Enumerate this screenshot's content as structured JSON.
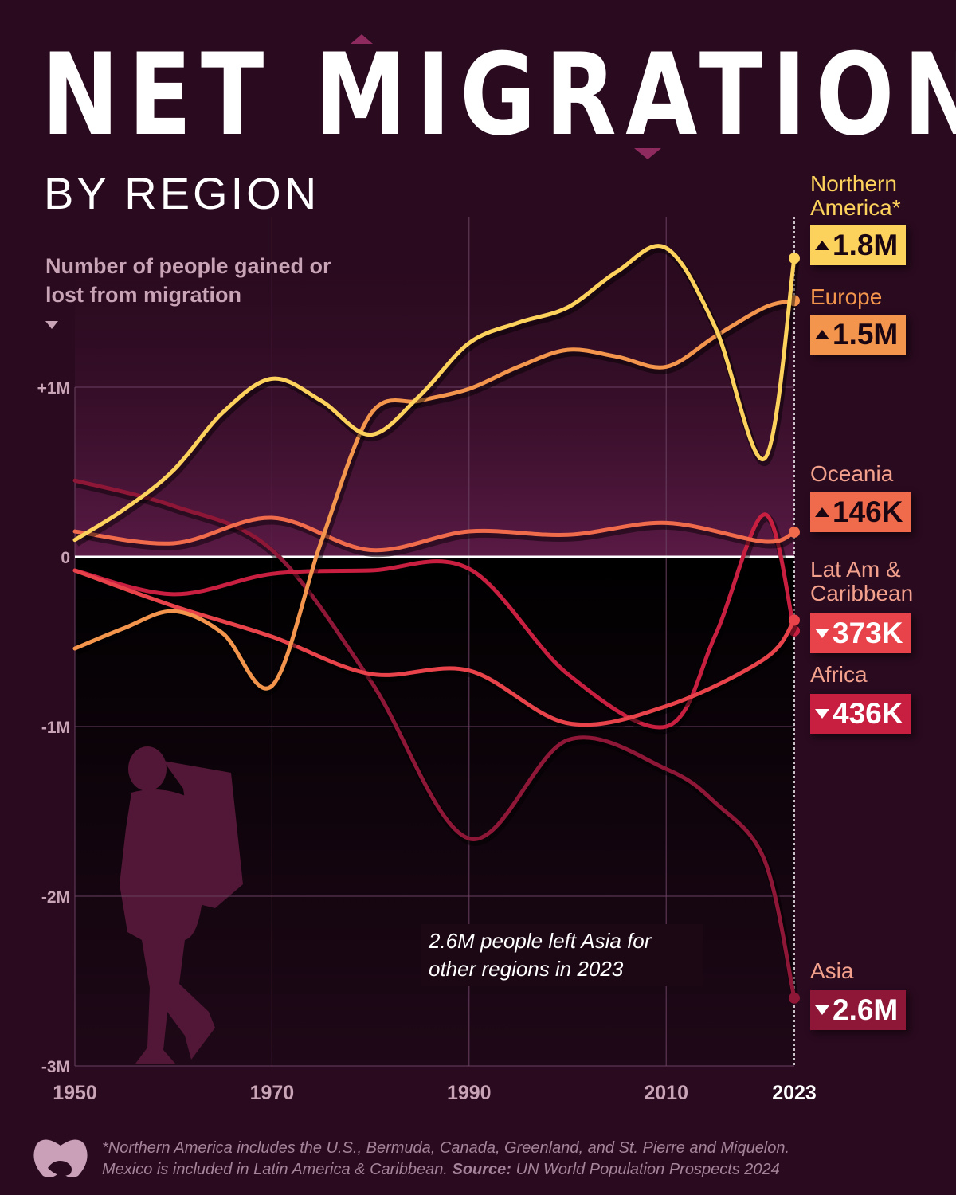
{
  "header": {
    "title": "NET MIGRATION",
    "subtitle": "BY REGION",
    "y_description": "Number of people gained or lost from migration"
  },
  "annotation": "2.6M people left Asia for other regions in 2023",
  "footnote": {
    "line1": "*Northern America includes the U.S., Bermuda, Canada, Greenland, and St. Pierre and Miquelon.",
    "line2_prefix": "Mexico is included in Latin America & Caribbean.",
    "source_label": "Source:",
    "source": "UN World Population Prospects 2024"
  },
  "icons": {
    "hiker": "hiker-silhouette-icon",
    "logo": "visual-capitalist-logo-icon",
    "up": "triangle-up-icon",
    "down": "triangle-down-icon"
  },
  "chart_data": {
    "type": "line",
    "title": "NET MIGRATION",
    "subtitle": "BY REGION",
    "ylabel": "Number of people gained or lost from migration",
    "xlim": [
      1950,
      2023
    ],
    "ylim": [
      -3,
      2
    ],
    "x_ticks": [
      "1950",
      "1970",
      "1990",
      "2010",
      "2023"
    ],
    "x_tick_values": [
      1950,
      1970,
      1990,
      2010,
      2023
    ],
    "y_ticks": [
      "+1M",
      "0",
      "-1M",
      "-2M",
      "-3M"
    ],
    "y_tick_values": [
      1,
      0,
      -1,
      -2,
      -3
    ],
    "unit": "millions of people",
    "grid": true,
    "series": [
      {
        "name": "Northern America*",
        "label_line1": "Northern",
        "label_line2": "America*",
        "end_label": "1.8M",
        "direction": "up",
        "color": "#fdd25c",
        "text_color": "#fdd25c",
        "x": [
          1950,
          1955,
          1960,
          1965,
          1970,
          1975,
          1980,
          1985,
          1990,
          1995,
          2000,
          2005,
          2010,
          2015,
          2020,
          2023
        ],
        "values": [
          0.1,
          0.28,
          0.51,
          0.85,
          1.05,
          0.92,
          0.72,
          0.95,
          1.26,
          1.38,
          1.47,
          1.68,
          1.82,
          1.35,
          0.58,
          1.76
        ]
      },
      {
        "name": "Europe",
        "label_line1": "Europe",
        "end_label": "1.5M",
        "direction": "up",
        "color": "#f3954c",
        "text_color": "#f3954c",
        "x": [
          1950,
          1955,
          1960,
          1965,
          1970,
          1975,
          1980,
          1985,
          1990,
          1995,
          2000,
          2005,
          2010,
          2015,
          2020,
          2023
        ],
        "values": [
          -0.54,
          -0.42,
          -0.32,
          -0.45,
          -0.76,
          0.09,
          0.84,
          0.92,
          0.99,
          1.12,
          1.22,
          1.18,
          1.12,
          1.3,
          1.47,
          1.51
        ]
      },
      {
        "name": "Oceania",
        "label_line1": "Oceania",
        "end_label": "146K",
        "direction": "up",
        "color": "#f06b4b",
        "text_color": "#f3a08c",
        "x": [
          1950,
          1960,
          1970,
          1980,
          1990,
          2000,
          2010,
          2020,
          2023
        ],
        "values": [
          0.15,
          0.08,
          0.23,
          0.04,
          0.15,
          0.13,
          0.2,
          0.09,
          0.146
        ]
      },
      {
        "name": "Lat Am & Caribbean",
        "label_line1": "Lat Am &",
        "label_line2": "Caribbean",
        "end_label": "373K",
        "direction": "down",
        "color": "#e8424b",
        "text_color": "#f3a08c",
        "x": [
          1950,
          1960,
          1970,
          1980,
          1990,
          2000,
          2010,
          2020,
          2023
        ],
        "values": [
          -0.08,
          -0.29,
          -0.47,
          -0.69,
          -0.67,
          -0.98,
          -0.88,
          -0.6,
          -0.373
        ]
      },
      {
        "name": "Africa",
        "label_line1": "Africa",
        "end_label": "436K",
        "direction": "down",
        "color": "#c81f40",
        "text_color": "#f3a08c",
        "x": [
          1950,
          1960,
          1970,
          1980,
          1990,
          2000,
          2010,
          2015,
          2020,
          2023
        ],
        "values": [
          -0.08,
          -0.22,
          -0.1,
          -0.08,
          -0.07,
          -0.69,
          -1.0,
          -0.46,
          0.25,
          -0.436
        ]
      },
      {
        "name": "Asia",
        "label_line1": "Asia",
        "end_label": "2.6M",
        "direction": "down",
        "color": "#8e1636",
        "text_color": "#f3a08c",
        "x": [
          1950,
          1960,
          1970,
          1980,
          1990,
          2000,
          2010,
          2015,
          2020,
          2023
        ],
        "values": [
          0.45,
          0.3,
          0.04,
          -0.73,
          -1.66,
          -1.08,
          -1.25,
          -1.45,
          -1.79,
          -2.6
        ]
      }
    ]
  }
}
